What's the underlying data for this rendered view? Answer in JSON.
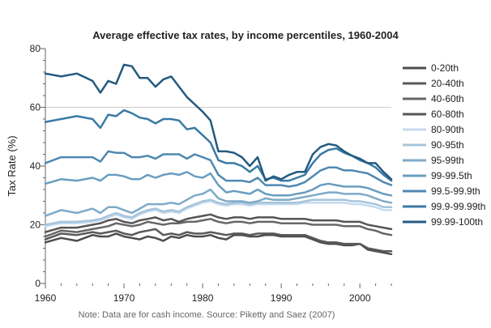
{
  "chart_data": {
    "type": "line",
    "title": "Average effective tax rates, by income percentiles, 1960-2004",
    "xlabel": "",
    "ylabel": "Tax Rate (%)",
    "note": "Note: Data are for cash income. Source: Piketty and Saez (2007)",
    "xlim": [
      1960,
      2004
    ],
    "ylim": [
      0,
      80
    ],
    "x_ticks": [
      1960,
      1970,
      1980,
      1990,
      2000
    ],
    "y_ticks": [
      0,
      20,
      40,
      60,
      80
    ],
    "grid_y": [
      60
    ],
    "legend_position": "right",
    "x": [
      1960,
      1962,
      1964,
      1966,
      1967,
      1968,
      1969,
      1970,
      1971,
      1972,
      1973,
      1974,
      1975,
      1976,
      1977,
      1978,
      1979,
      1980,
      1981,
      1982,
      1983,
      1984,
      1985,
      1986,
      1987,
      1988,
      1989,
      1990,
      1991,
      1992,
      1993,
      1994,
      1995,
      1996,
      1997,
      1998,
      1999,
      2000,
      2001,
      2002,
      2003,
      2004
    ],
    "series": [
      {
        "name": "0-20th",
        "color": "#4d4d4d",
        "values": [
          14.0,
          15.5,
          14.5,
          16.5,
          16.0,
          16.0,
          17.0,
          16.0,
          15.5,
          15.0,
          16.0,
          15.5,
          14.5,
          16.0,
          15.5,
          16.5,
          16.0,
          16.0,
          16.5,
          15.5,
          15.0,
          16.5,
          16.5,
          16.0,
          16.0,
          16.5,
          16.5,
          16.0,
          16.0,
          16.0,
          16.0,
          15.0,
          14.0,
          13.5,
          13.5,
          13.0,
          13.0,
          13.5,
          11.5,
          11.0,
          10.5,
          10.0
        ]
      },
      {
        "name": "20-40th",
        "color": "#595959",
        "values": [
          15.0,
          17.0,
          16.5,
          17.5,
          17.0,
          17.5,
          18.0,
          17.0,
          16.5,
          17.5,
          18.0,
          18.5,
          16.5,
          17.0,
          16.5,
          17.5,
          17.0,
          17.0,
          17.5,
          17.0,
          16.5,
          17.0,
          17.0,
          16.5,
          17.0,
          17.0,
          17.0,
          16.5,
          16.5,
          16.5,
          16.5,
          15.5,
          14.5,
          14.0,
          14.0,
          13.5,
          13.5,
          13.5,
          12.0,
          11.5,
          11.0,
          11.0
        ]
      },
      {
        "name": "40-60th",
        "color": "#666666",
        "values": [
          16.0,
          18.0,
          17.5,
          18.5,
          19.0,
          19.5,
          20.5,
          20.0,
          19.5,
          20.0,
          21.0,
          20.5,
          20.0,
          20.5,
          20.5,
          21.0,
          21.0,
          21.5,
          22.0,
          21.0,
          20.5,
          21.0,
          21.0,
          20.5,
          21.0,
          21.0,
          21.0,
          20.5,
          20.5,
          20.5,
          20.5,
          20.0,
          20.0,
          20.0,
          20.0,
          19.5,
          19.5,
          19.5,
          18.5,
          18.0,
          17.0,
          16.5
        ]
      },
      {
        "name": "60-80th",
        "color": "#555555",
        "values": [
          17.5,
          19.0,
          19.0,
          20.0,
          20.5,
          21.5,
          22.0,
          21.0,
          20.5,
          21.5,
          22.0,
          22.5,
          21.5,
          22.0,
          21.0,
          22.0,
          22.5,
          23.0,
          23.5,
          22.5,
          22.0,
          22.5,
          22.5,
          22.0,
          22.5,
          22.5,
          22.5,
          22.0,
          22.0,
          22.0,
          22.0,
          21.5,
          21.5,
          21.5,
          21.5,
          21.0,
          21.0,
          21.0,
          20.0,
          19.5,
          19.0,
          18.5
        ]
      },
      {
        "name": "80-90th",
        "color": "#c6dbef",
        "values": [
          19.5,
          20.5,
          20.5,
          21.0,
          21.5,
          22.5,
          23.5,
          22.5,
          22.0,
          23.5,
          24.5,
          25.0,
          24.0,
          24.5,
          24.0,
          25.5,
          26.5,
          27.5,
          28.0,
          27.0,
          26.5,
          27.0,
          27.0,
          26.5,
          27.0,
          27.0,
          27.0,
          27.0,
          27.0,
          27.0,
          27.5,
          27.5,
          27.5,
          27.5,
          27.5,
          27.5,
          27.0,
          27.0,
          26.5,
          26.0,
          25.0,
          25.0
        ]
      },
      {
        "name": "90-95th",
        "color": "#a6c4da",
        "values": [
          20.0,
          21.0,
          21.0,
          21.5,
          22.0,
          23.0,
          24.0,
          23.0,
          22.5,
          24.0,
          25.0,
          25.5,
          24.5,
          25.0,
          24.5,
          26.0,
          27.0,
          28.0,
          28.5,
          27.5,
          27.0,
          27.5,
          27.5,
          27.0,
          27.5,
          27.5,
          27.5,
          27.5,
          27.5,
          27.5,
          28.0,
          28.5,
          28.5,
          28.5,
          28.5,
          28.5,
          28.0,
          28.0,
          27.5,
          27.0,
          26.0,
          26.0
        ]
      },
      {
        "name": "95-99th",
        "color": "#7eaac8",
        "values": [
          23.0,
          25.0,
          24.0,
          25.5,
          24.0,
          26.0,
          26.0,
          25.0,
          24.0,
          25.5,
          27.0,
          27.0,
          27.0,
          27.5,
          27.0,
          28.5,
          30.0,
          30.5,
          32.0,
          29.0,
          28.0,
          28.0,
          28.0,
          27.5,
          28.0,
          29.0,
          28.5,
          28.5,
          28.5,
          29.0,
          29.5,
          30.0,
          30.5,
          31.0,
          31.0,
          30.5,
          30.5,
          30.5,
          30.0,
          29.0,
          28.0,
          27.5
        ]
      },
      {
        "name": "99-99.5th",
        "color": "#6a9dc0",
        "values": [
          34.0,
          35.5,
          35.0,
          36.0,
          35.0,
          37.0,
          37.0,
          36.5,
          35.5,
          35.5,
          37.0,
          36.0,
          37.0,
          37.5,
          37.0,
          38.0,
          36.5,
          36.0,
          37.5,
          33.5,
          31.0,
          31.5,
          31.0,
          30.5,
          32.0,
          30.5,
          30.0,
          30.0,
          30.0,
          30.5,
          31.0,
          32.0,
          33.5,
          34.0,
          33.5,
          33.0,
          33.0,
          33.0,
          32.5,
          31.5,
          30.5,
          30.0
        ]
      },
      {
        "name": "99.5-99.9th",
        "color": "#4f88b0",
        "values": [
          41.0,
          43.0,
          43.0,
          43.0,
          41.5,
          45.0,
          44.5,
          44.5,
          43.0,
          43.0,
          43.5,
          42.5,
          44.0,
          44.0,
          44.0,
          42.5,
          44.0,
          43.0,
          42.0,
          37.0,
          35.0,
          35.0,
          35.0,
          34.5,
          36.0,
          33.5,
          33.5,
          33.5,
          33.0,
          33.5,
          34.5,
          36.5,
          38.5,
          39.5,
          39.5,
          38.5,
          38.5,
          38.0,
          37.5,
          36.0,
          34.5,
          33.5
        ]
      },
      {
        "name": "99.9-99.99th",
        "color": "#3a7aa5",
        "values": [
          55.0,
          56.0,
          57.0,
          56.0,
          53.0,
          57.5,
          57.0,
          59.0,
          58.0,
          56.5,
          56.0,
          54.5,
          56.0,
          56.0,
          55.5,
          52.5,
          53.0,
          50.5,
          48.0,
          42.0,
          41.0,
          41.0,
          40.0,
          38.0,
          40.0,
          35.5,
          36.0,
          35.0,
          35.0,
          36.0,
          37.0,
          41.0,
          44.0,
          45.5,
          46.0,
          44.5,
          43.5,
          42.0,
          41.0,
          39.5,
          37.0,
          35.0
        ]
      },
      {
        "name": "99.99-100th",
        "color": "#245a80",
        "values": [
          71.5,
          70.5,
          71.5,
          69.0,
          65.0,
          69.0,
          68.0,
          74.5,
          74.0,
          70.0,
          70.0,
          67.0,
          69.5,
          70.5,
          67.0,
          63.5,
          61.0,
          58.5,
          55.5,
          45.0,
          45.0,
          44.5,
          43.0,
          40.0,
          43.0,
          35.0,
          36.5,
          35.5,
          37.0,
          38.0,
          38.0,
          44.0,
          46.5,
          47.5,
          47.0,
          45.0,
          43.5,
          42.5,
          41.0,
          41.0,
          38.0,
          35.5
        ]
      }
    ]
  }
}
